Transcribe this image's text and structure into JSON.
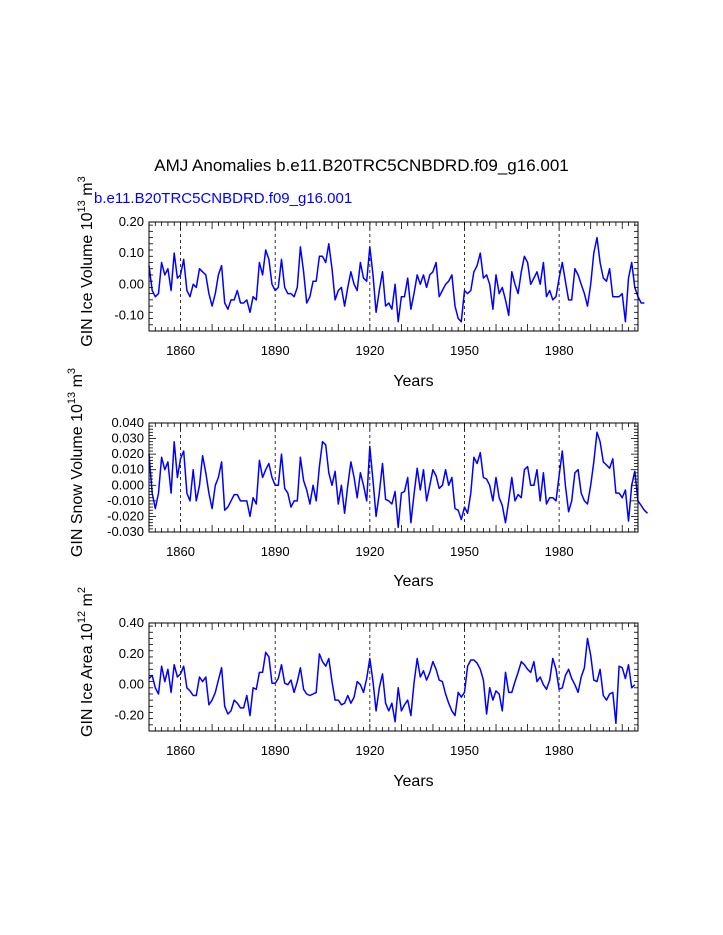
{
  "title": "AMJ Anomalies b.e11.B20TRC5CNBDRD.f09_g16.001",
  "subtitle": "b.e11.B20TRC5CNBDRD.f09_g16.001",
  "colors": {
    "line": "#0000ff",
    "axis": "#000000",
    "grid": "#000000"
  },
  "chart_data": [
    {
      "type": "line",
      "xlabel": "Years",
      "ylabel": "GIN Ice Volume 10",
      "ylabel_exp": "13",
      "ylabel_unit": "m",
      "ylabel_unit_exp": "3",
      "xlim": [
        1850,
        2005
      ],
      "ylim": [
        -0.15,
        0.2
      ],
      "xticks": [
        1860,
        1890,
        1920,
        1950,
        1980
      ],
      "yticks": [
        0.2,
        0.1,
        0.0,
        -0.1
      ],
      "ytick_labels": [
        "0.20",
        "0.10",
        "0.00",
        "-0.10"
      ],
      "grid_x": true,
      "x_start": 1850,
      "values": [
        0.06,
        -0.02,
        -0.04,
        -0.03,
        0.07,
        0.03,
        0.05,
        -0.02,
        0.1,
        0.02,
        0.03,
        0.08,
        -0.02,
        -0.04,
        0.0,
        -0.01,
        0.05,
        0.04,
        0.03,
        -0.03,
        -0.07,
        -0.03,
        0.03,
        0.06,
        -0.06,
        -0.08,
        -0.05,
        -0.05,
        -0.02,
        -0.06,
        -0.06,
        -0.05,
        -0.09,
        -0.04,
        -0.05,
        0.07,
        0.03,
        0.11,
        0.08,
        0.0,
        -0.02,
        -0.01,
        0.08,
        -0.01,
        -0.03,
        -0.03,
        -0.04,
        -0.01,
        0.12,
        0.04,
        -0.06,
        -0.04,
        0.01,
        0.01,
        0.09,
        0.09,
        0.07,
        0.13,
        0.05,
        -0.05,
        -0.02,
        -0.01,
        -0.07,
        -0.01,
        0.04,
        0.0,
        -0.02,
        0.07,
        0.02,
        0.01,
        0.12,
        0.03,
        -0.09,
        -0.02,
        0.04,
        -0.07,
        -0.06,
        -0.08,
        0.0,
        -0.12,
        -0.04,
        -0.04,
        0.02,
        -0.08,
        -0.03,
        0.03,
        0.0,
        0.03,
        -0.01,
        0.03,
        0.04,
        0.07,
        -0.04,
        -0.02,
        0.0,
        0.01,
        0.03,
        -0.07,
        -0.11,
        -0.12,
        -0.02,
        -0.03,
        -0.02,
        0.04,
        0.06,
        0.1,
        0.02,
        0.03,
        0.0,
        -0.08,
        0.03,
        -0.03,
        -0.01,
        -0.05,
        -0.1,
        0.04,
        0.0,
        -0.03,
        0.04,
        0.09,
        0.07,
        0.0,
        0.02,
        0.04,
        0.0,
        0.07,
        -0.04,
        -0.02,
        -0.05,
        -0.04,
        0.02,
        0.07,
        0.01,
        -0.05,
        -0.05,
        0.05,
        0.03,
        0.0,
        -0.03,
        -0.07,
        0.0,
        0.1,
        0.15,
        0.07,
        0.02,
        0.01,
        0.05,
        -0.04,
        -0.04,
        -0.04,
        -0.03,
        -0.12,
        0.02,
        0.07,
        -0.01,
        -0.04,
        -0.06,
        -0.06
      ]
    },
    {
      "type": "line",
      "xlabel": "Years",
      "ylabel": "GIN Snow Volume 10",
      "ylabel_exp": "13",
      "ylabel_unit": "m",
      "ylabel_unit_exp": "3",
      "xlim": [
        1850,
        2005
      ],
      "ylim": [
        -0.03,
        0.04
      ],
      "xticks": [
        1860,
        1890,
        1920,
        1950,
        1980
      ],
      "yticks": [
        0.04,
        0.03,
        0.02,
        0.01,
        0.0,
        -0.01,
        -0.02,
        -0.03
      ],
      "ytick_labels": [
        "0.040",
        "0.030",
        "0.020",
        "0.010",
        "0.000",
        "-0.010",
        "-0.020",
        "-0.030"
      ],
      "grid_x": true,
      "x_start": 1850,
      "values": [
        0.02,
        -0.005,
        -0.015,
        -0.005,
        0.018,
        0.01,
        0.015,
        -0.005,
        0.028,
        0.005,
        0.017,
        0.022,
        -0.005,
        -0.01,
        0.01,
        -0.01,
        0.0,
        0.019,
        0.008,
        -0.005,
        -0.015,
        0.0,
        0.005,
        0.015,
        -0.016,
        -0.014,
        -0.01,
        -0.006,
        -0.006,
        -0.01,
        -0.01,
        -0.01,
        -0.02,
        -0.008,
        -0.012,
        0.016,
        0.005,
        0.01,
        0.014,
        0.005,
        0.0,
        0.0,
        0.02,
        -0.002,
        -0.005,
        -0.014,
        -0.01,
        -0.01,
        0.018,
        0.003,
        -0.003,
        -0.012,
        0.0,
        -0.01,
        0.012,
        0.028,
        0.026,
        0.008,
        0.0,
        0.009,
        -0.012,
        0.0,
        -0.018,
        0.0,
        0.015,
        0.005,
        -0.008,
        0.008,
        0.0,
        -0.01,
        0.025,
        0.003,
        -0.02,
        -0.005,
        0.014,
        -0.009,
        -0.01,
        -0.012,
        -0.004,
        -0.027,
        -0.005,
        -0.004,
        0.005,
        -0.024,
        -0.006,
        0.011,
        -0.003,
        0.01,
        -0.01,
        0.0,
        0.01,
        0.006,
        -0.002,
        0.0,
        0.01,
        0.0,
        0.005,
        -0.015,
        -0.016,
        -0.022,
        -0.014,
        -0.018,
        -0.005,
        0.018,
        0.014,
        0.021,
        0.005,
        0.004,
        0.0,
        -0.01,
        0.005,
        -0.008,
        -0.013,
        -0.024,
        -0.01,
        0.005,
        -0.01,
        -0.006,
        -0.008,
        0.01,
        0.012,
        0.0,
        0.0,
        0.01,
        -0.01,
        0.008,
        -0.012,
        -0.008,
        -0.008,
        -0.01,
        0.006,
        0.022,
        0.0,
        -0.017,
        -0.01,
        0.008,
        0.01,
        -0.005,
        -0.01,
        -0.012,
        0.0,
        0.015,
        0.034,
        0.028,
        0.015,
        0.013,
        0.011,
        0.017,
        -0.005,
        -0.005,
        -0.008,
        -0.003,
        -0.023,
        0.0,
        0.009,
        -0.01,
        -0.013,
        -0.016,
        -0.018
      ]
    },
    {
      "type": "line",
      "xlabel": "Years",
      "ylabel": "GIN Ice Area 10",
      "ylabel_exp": "12",
      "ylabel_unit": "m",
      "ylabel_unit_exp": "2",
      "xlim": [
        1850,
        2005
      ],
      "ylim": [
        -0.3,
        0.4
      ],
      "xticks": [
        1860,
        1890,
        1920,
        1950,
        1980
      ],
      "yticks": [
        0.4,
        0.2,
        0.0,
        -0.2
      ],
      "ytick_labels": [
        "0.40",
        "0.20",
        "0.00",
        "-0.20"
      ],
      "grid_x": true,
      "x_start": 1850,
      "values": [
        0.04,
        0.06,
        -0.02,
        -0.06,
        0.12,
        0.02,
        0.1,
        -0.05,
        0.13,
        0.05,
        0.07,
        0.12,
        -0.02,
        -0.04,
        -0.07,
        -0.07,
        0.05,
        0.02,
        0.05,
        -0.13,
        -0.1,
        -0.05,
        0.03,
        0.11,
        -0.14,
        -0.19,
        -0.17,
        -0.1,
        -0.12,
        -0.15,
        -0.15,
        -0.07,
        -0.2,
        -0.02,
        -0.03,
        0.08,
        0.08,
        0.21,
        0.18,
        0.01,
        0.01,
        0.04,
        0.13,
        0.01,
        0.0,
        0.03,
        -0.05,
        0.02,
        0.11,
        -0.03,
        -0.06,
        -0.07,
        -0.06,
        -0.05,
        0.2,
        0.15,
        0.12,
        0.17,
        0.02,
        -0.1,
        -0.1,
        -0.13,
        -0.12,
        -0.07,
        -0.12,
        -0.08,
        0.02,
        0.0,
        -0.05,
        0.04,
        0.17,
        0.02,
        -0.17,
        -0.02,
        0.07,
        -0.12,
        -0.17,
        -0.12,
        -0.24,
        -0.02,
        -0.17,
        -0.13,
        -0.1,
        -0.2,
        0.01,
        0.17,
        0.05,
        0.09,
        0.03,
        0.08,
        0.15,
        0.1,
        0.03,
        0.02,
        -0.06,
        -0.12,
        -0.17,
        -0.2,
        -0.05,
        -0.08,
        -0.05,
        0.12,
        0.16,
        0.16,
        0.14,
        0.1,
        0.03,
        -0.19,
        -0.02,
        -0.1,
        -0.04,
        -0.06,
        -0.17,
        0.08,
        -0.05,
        -0.05,
        0.02,
        0.08,
        0.15,
        0.13,
        0.1,
        0.08,
        0.15,
        0.02,
        0.05,
        0.0,
        -0.03,
        0.03,
        0.17,
        0.1,
        -0.03,
        -0.02,
        0.06,
        0.1,
        0.04,
        0.0,
        -0.05,
        0.05,
        0.11,
        0.3,
        0.19,
        0.03,
        0.02,
        0.1,
        -0.07,
        -0.1,
        -0.06,
        -0.05,
        -0.25,
        0.12,
        0.11,
        0.04,
        0.13,
        -0.02,
        0.0
      ]
    }
  ]
}
